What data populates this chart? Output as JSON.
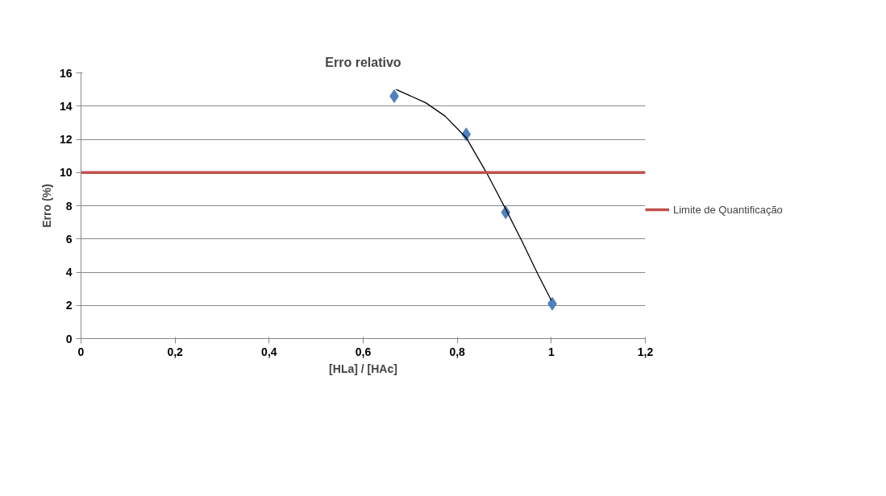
{
  "chart_data": {
    "type": "scatter",
    "title": "Erro relativo",
    "xlabel": "[HLa] / [HAc]",
    "ylabel": "Erro (%)",
    "series": [
      {
        "color": "#4f81bd",
        "x": [
          0.666,
          0.819,
          0.903,
          1.002
        ],
        "values": [
          14.6,
          12.3,
          7.6,
          2.1
        ],
        "marker": "diamond"
      },
      {
        "type": "line",
        "color": "#000000",
        "x": [
          0.67,
          0.733,
          0.774,
          0.819,
          0.864,
          0.903,
          0.937,
          0.971,
          1.0
        ],
        "values": [
          15.0,
          14.2,
          13.4,
          12.1,
          9.9,
          7.8,
          5.9,
          3.9,
          2.3
        ],
        "line_style": "solid"
      }
    ],
    "ref_lines": [
      {
        "axis": "y",
        "value": 10,
        "label": "Limite de Quantificação",
        "color": "#c0504d"
      }
    ],
    "xlim": [
      0,
      1.2
    ],
    "xticks": [
      0,
      {
        "value": 0.2,
        "label": "0,2"
      },
      {
        "value": 0.4,
        "label": "0,4"
      },
      {
        "value": 0.6,
        "label": "0,6"
      },
      {
        "value": 0.8,
        "label": "0,8"
      },
      1,
      {
        "value": 1.2,
        "label": "1,2"
      }
    ],
    "ylim": [
      0,
      16
    ],
    "yticks": [
      0,
      2,
      4,
      6,
      8,
      10,
      12,
      14,
      16
    ],
    "grid": "y",
    "legend": "right"
  }
}
